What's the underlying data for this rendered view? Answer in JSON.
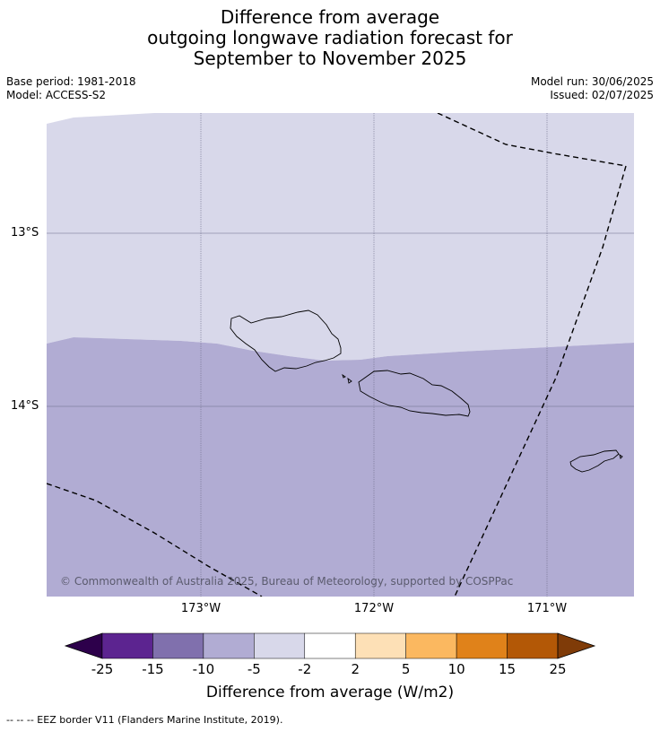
{
  "title": {
    "line1": "Difference from average",
    "line2": "outgoing longwave radiation forecast for",
    "line3": "September to November 2025"
  },
  "meta_left": {
    "base_period": "Base period: 1981-2018",
    "model": "Model: ACCESS-S2"
  },
  "meta_right": {
    "model_run": "Model run: 30/06/2025",
    "issued": "Issued: 02/07/2025"
  },
  "map": {
    "lat_labels": [
      "13°S",
      "14°S"
    ],
    "lon_labels": [
      "173°W",
      "172°W",
      "171°W"
    ],
    "copyright": "© Commonwealth of Australia 2025, Bureau of Meteorology, supported by COSPPac",
    "regions": [
      {
        "category": "-5 to -2",
        "color": "#d8d8ea"
      },
      {
        "category": "-10 to -5",
        "color": "#b1acd3"
      }
    ],
    "islands": [
      "Savai'i",
      "Upolu",
      "Tutuila"
    ]
  },
  "colorbar": {
    "ticks": [
      "-25",
      "-15",
      "-10",
      "-5",
      "-2",
      "2",
      "5",
      "10",
      "15",
      "25"
    ],
    "colors": [
      "#2d004b",
      "#5c2490",
      "#8070ad",
      "#b1acd3",
      "#d8d8ea",
      "#ffffff",
      "#fde0b6",
      "#fbb860",
      "#e0821a",
      "#b35806",
      "#7f3b08"
    ],
    "label": "Difference from average (W/m2)"
  },
  "footnote": "--  --  -- EEZ border V11 (Flanders Marine Institute, 2019)."
}
